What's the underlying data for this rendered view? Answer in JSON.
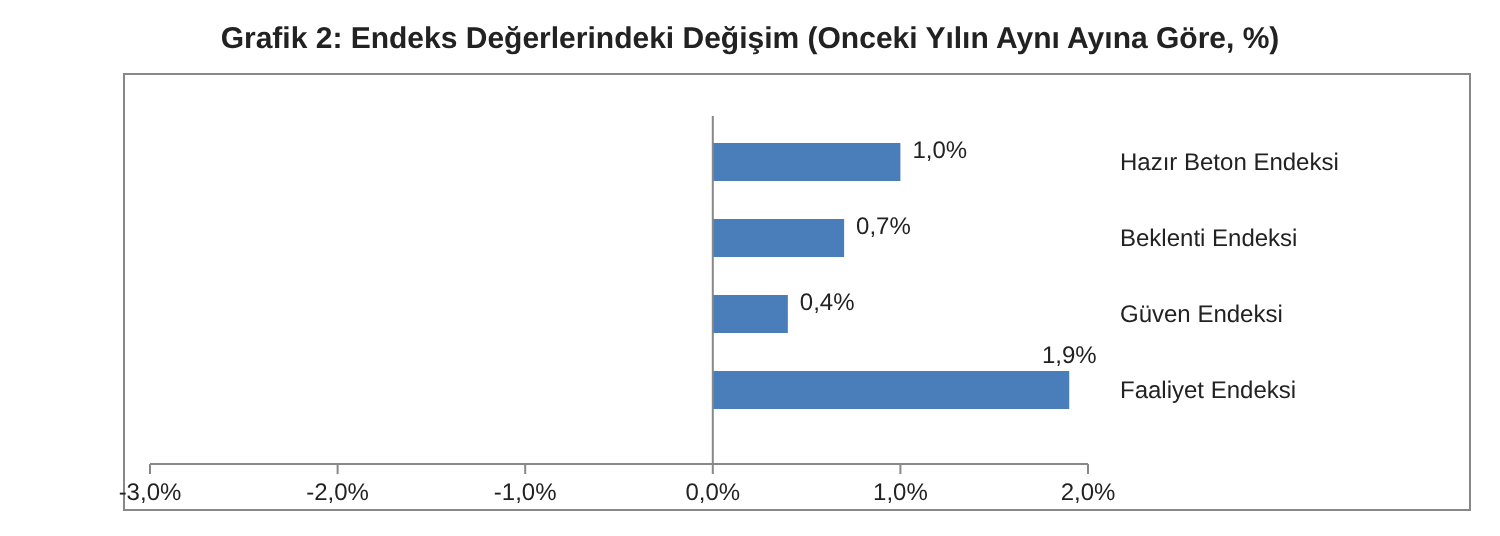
{
  "chart_data": {
    "type": "bar",
    "orientation": "horizontal",
    "title": "Grafik 2: Endeks Değerlerindeki Değişim (Onceki Yılın Aynı Ayına Göre, %)",
    "categories": [
      "Hazır Beton Endeksi",
      "Beklenti Endeksi",
      "Güven Endeksi",
      "Faaliyet Endeksi"
    ],
    "values": [
      1.0,
      0.7,
      0.4,
      1.9
    ],
    "value_labels": [
      "1,0%",
      "0,7%",
      "0,4%",
      "1,9%"
    ],
    "color": "#4a7ebb",
    "xlim": [
      -3,
      2
    ],
    "xticks": [
      {
        "value": -3,
        "label": "-3,0%"
      },
      {
        "value": -2,
        "label": "-2,0%"
      },
      {
        "value": -1,
        "label": "-1,0%"
      },
      {
        "value": 0,
        "label": "0,0%"
      },
      {
        "value": 1,
        "label": "1,0%"
      },
      {
        "value": 2,
        "label": "2,0%"
      }
    ]
  }
}
